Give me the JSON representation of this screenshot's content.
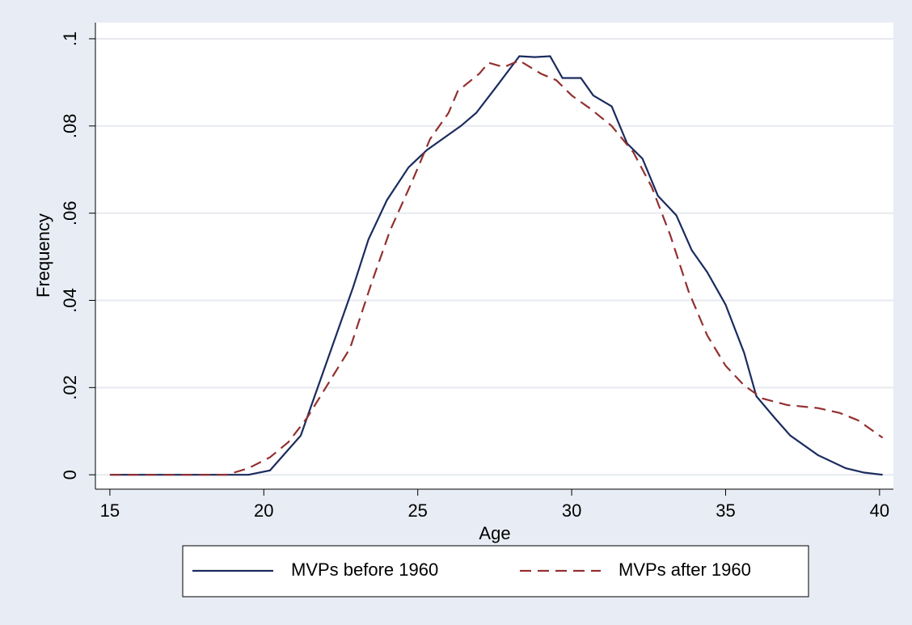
{
  "chart_data": {
    "type": "line",
    "xlabel": "Age",
    "ylabel": "Frequency",
    "xlim": [
      14.53,
      40.45
    ],
    "ylim": [
      -0.0033,
      0.1037
    ],
    "xticks": [
      15,
      20,
      25,
      30,
      35,
      40
    ],
    "yticks": [
      0,
      {
        "value": 0.02,
        "label": ".02"
      },
      {
        "value": 0.04,
        "label": ".04"
      },
      {
        "value": 0.06,
        "label": ".06"
      },
      {
        "value": 0.08,
        "label": ".08"
      },
      {
        "value": 0.1,
        "label": ".1"
      }
    ],
    "grid": true,
    "legend": "bottom",
    "series": [
      {
        "name": "MVPs before 1960",
        "color": "#1a2b5e",
        "dash": false,
        "x": [
          15,
          19.5,
          20.2,
          20.7,
          21.2,
          22,
          22.9,
          23.4,
          24,
          24.7,
          25.3,
          25.8,
          26.4,
          26.9,
          27.5,
          28.3,
          28.8,
          29.3,
          29.7,
          30.3,
          30.7,
          31.3,
          31.8,
          32.3,
          32.8,
          33.4,
          33.9,
          34.4,
          35,
          35.6,
          36,
          36.6,
          37.1,
          38,
          38.9,
          39.5,
          40.1
        ],
        "values": [
          0,
          0,
          0.001,
          0.005,
          0.009,
          0.025,
          0.043,
          0.054,
          0.063,
          0.0705,
          0.0745,
          0.077,
          0.08,
          0.083,
          0.0885,
          0.096,
          0.0958,
          0.096,
          0.091,
          0.091,
          0.087,
          0.0845,
          0.076,
          0.0725,
          0.064,
          0.0595,
          0.0515,
          0.0465,
          0.039,
          0.028,
          0.018,
          0.013,
          0.009,
          0.0045,
          0.0015,
          0.0005,
          0
        ]
      },
      {
        "name": "MVPs after 1960",
        "color": "#933030",
        "dash": true,
        "x": [
          15,
          18.8,
          19.5,
          20.2,
          20.8,
          21.4,
          22.1,
          22.8,
          23.5,
          24.1,
          24.8,
          25.4,
          26,
          26.3,
          27,
          27.3,
          27.8,
          28.3,
          29,
          29.5,
          30,
          30.6,
          31.3,
          32,
          32.6,
          33.2,
          33.8,
          34.4,
          35,
          35.6,
          36.2,
          37,
          38,
          38.7,
          39.3,
          40.1
        ],
        "values": [
          0,
          0,
          0.0015,
          0.004,
          0.0075,
          0.013,
          0.021,
          0.029,
          0.044,
          0.056,
          0.067,
          0.077,
          0.083,
          0.088,
          0.092,
          0.0945,
          0.0935,
          0.095,
          0.092,
          0.0905,
          0.087,
          0.084,
          0.08,
          0.074,
          0.066,
          0.055,
          0.042,
          0.032,
          0.025,
          0.0205,
          0.0175,
          0.016,
          0.0153,
          0.0142,
          0.0125,
          0.0085
        ]
      }
    ]
  }
}
